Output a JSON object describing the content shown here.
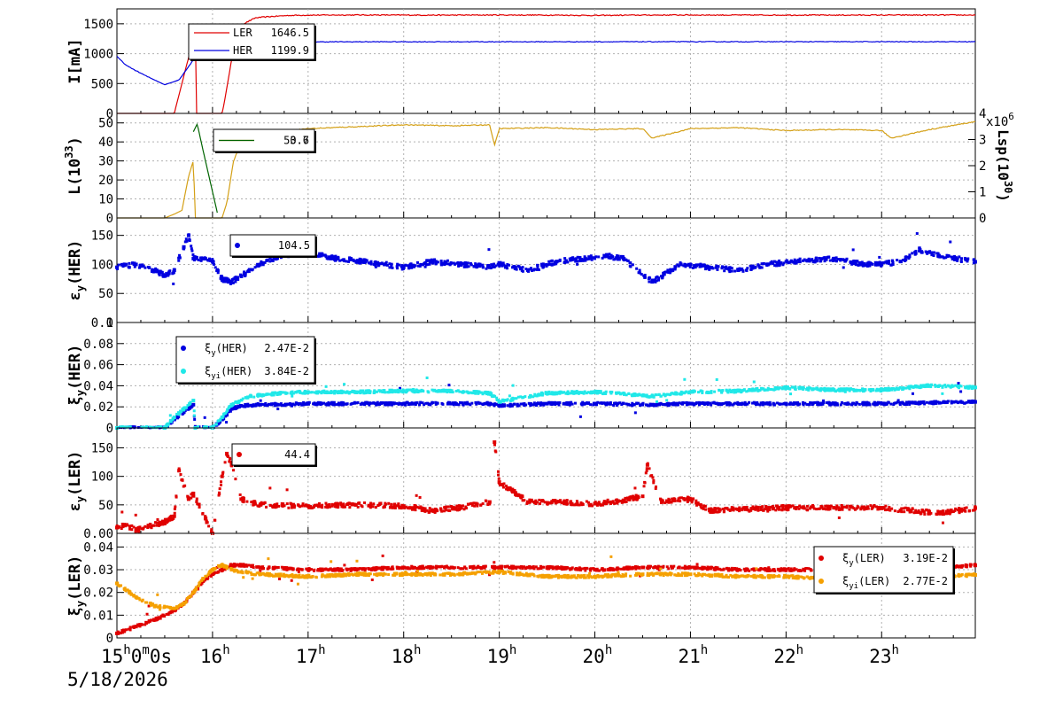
{
  "x_axis": {
    "tick_labels": [
      {
        "t": 15,
        "label": "15",
        "sup": "h",
        "rest": "0",
        "sup2": "m",
        "rest2": "0s"
      },
      {
        "t": 16,
        "label": "16",
        "sup": "h"
      },
      {
        "t": 17,
        "label": "17",
        "sup": "h"
      },
      {
        "t": 18,
        "label": "18",
        "sup": "h"
      },
      {
        "t": 19,
        "label": "19",
        "sup": "h"
      },
      {
        "t": 20,
        "label": "20",
        "sup": "h"
      },
      {
        "t": 21,
        "label": "21",
        "sup": "h"
      },
      {
        "t": 22,
        "label": "22",
        "sup": "h"
      },
      {
        "t": 23,
        "label": "23",
        "sup": "h"
      }
    ],
    "range_hours": [
      15.0,
      23.98
    ],
    "date": "5/18/2026",
    "grid": true
  },
  "colors": {
    "ler": "#e00000",
    "her": "#0000e0",
    "lum": "#d4a017",
    "lsp": "#006400",
    "her_xi_yi": "#20e8e8",
    "ler_xi_yi": "#f5a000"
  },
  "chart_data": [
    {
      "id": "panel-current",
      "type": "line",
      "ylabel": "I[mA]",
      "ylim": [
        0,
        1750
      ],
      "yticks": [
        0,
        500,
        1000,
        1500
      ],
      "legend": [
        {
          "name": "LER",
          "value": "1646.5",
          "color": "#e00000"
        },
        {
          "name": "HER",
          "value": "1199.9",
          "color": "#0000e0"
        }
      ],
      "series": [
        {
          "name": "LER",
          "color": "#e00000",
          "x": [
            15.0,
            15.6,
            15.82,
            15.83,
            16.1,
            16.12,
            16.2,
            16.3,
            16.45,
            16.6,
            16.8,
            17.0,
            17.5,
            18.0,
            18.5,
            19.0,
            19.5,
            20.0,
            20.5,
            21.0,
            21.5,
            22.0,
            22.5,
            23.0,
            23.5,
            23.98
          ],
          "y": [
            0,
            0,
            1380,
            0,
            0,
            150,
            900,
            1480,
            1600,
            1620,
            1640,
            1645,
            1648,
            1646,
            1645,
            1647,
            1646,
            1640,
            1646,
            1647,
            1646,
            1646,
            1645,
            1646,
            1646,
            1646.5
          ]
        },
        {
          "name": "HER",
          "color": "#0000e0",
          "x": [
            15.0,
            15.1,
            15.3,
            15.5,
            15.65,
            15.8,
            15.95,
            16.1,
            16.3,
            17.0,
            18.0,
            19.0,
            20.0,
            21.0,
            22.0,
            23.0,
            23.98
          ],
          "y": [
            950,
            800,
            630,
            480,
            560,
            900,
            1180,
            1190,
            1195,
            1198,
            1199,
            1199,
            1199,
            1200,
            1200,
            1200,
            1199.9
          ]
        }
      ]
    },
    {
      "id": "panel-lum",
      "type": "line",
      "ylabel": "L(10^33)",
      "ylabel2": "Lsp(10^30)",
      "ylim": [
        0,
        55
      ],
      "yticks": [
        0,
        10,
        20,
        30,
        40,
        50
      ],
      "y2lim": [
        0,
        4
      ],
      "y2ticks": [
        0,
        1,
        2,
        3,
        4
      ],
      "y2_multiplier": "x10^6",
      "legend": [
        {
          "name": "",
          "value": "50.7",
          "color": "#d4a017"
        },
        {
          "name": "",
          "value": "3.6",
          "color": "#006400"
        }
      ],
      "series": [
        {
          "name": "L",
          "color": "#d4a017",
          "x": [
            15.0,
            15.5,
            15.6,
            15.68,
            15.75,
            15.8,
            15.82,
            16.0,
            16.1,
            16.15,
            16.22,
            16.3,
            16.4,
            16.6,
            17.0,
            17.5,
            18.0,
            18.5,
            18.9,
            18.95,
            19.0,
            19.5,
            20.0,
            20.5,
            20.6,
            21.0,
            21.5,
            22.0,
            22.5,
            23.0,
            23.1,
            23.5,
            23.98
          ],
          "y": [
            0,
            0,
            2,
            4,
            22,
            30,
            0,
            0,
            0,
            8,
            30,
            40,
            44,
            45,
            47,
            48,
            49,
            48.5,
            49,
            38,
            47,
            47.5,
            46.5,
            47,
            42,
            47,
            47.5,
            46,
            46.5,
            46,
            42,
            46.5,
            50.7
          ]
        },
        {
          "name": "Lsp",
          "color": "#006400",
          "axis": "y2",
          "x": [
            15.8,
            15.84,
            15.9,
            16.0,
            16.05
          ],
          "y": [
            3.3,
            3.6,
            2.6,
            1.0,
            0.2
          ]
        }
      ]
    },
    {
      "id": "panel-ey-her",
      "type": "scatter",
      "ylabel": "εy(HER)",
      "ylim": [
        0,
        180
      ],
      "yticks": [
        0,
        50,
        100,
        150
      ],
      "legend": [
        {
          "name": "",
          "value": "104.5",
          "color": "#0000e0"
        }
      ],
      "series": [
        {
          "name": "εy(HER)",
          "color": "#0000e0",
          "x": [
            15.0,
            15.2,
            15.4,
            15.5,
            15.6,
            15.7,
            15.75,
            15.8,
            15.9,
            16.0,
            16.1,
            16.2,
            16.3,
            16.5,
            16.7,
            17.0,
            17.3,
            17.6,
            17.8,
            18.0,
            18.3,
            18.6,
            18.9,
            19.0,
            19.3,
            19.6,
            19.9,
            20.1,
            20.3,
            20.6,
            20.9,
            21.2,
            21.5,
            21.8,
            22.1,
            22.5,
            22.8,
            23.0,
            23.2,
            23.4,
            23.6,
            23.98
          ],
          "y": [
            95,
            100,
            90,
            80,
            90,
            130,
            150,
            110,
            110,
            105,
            75,
            70,
            80,
            100,
            115,
            120,
            110,
            105,
            100,
            95,
            105,
            100,
            95,
            100,
            90,
            105,
            110,
            115,
            110,
            70,
            100,
            95,
            90,
            100,
            105,
            110,
            100,
            100,
            105,
            125,
            115,
            104.5
          ]
        }
      ]
    },
    {
      "id": "panel-xi-her",
      "type": "scatter",
      "ylabel": "ξy(HER)",
      "ylim": [
        0,
        0.1
      ],
      "yticks": [
        0,
        0.02,
        0.04,
        0.06,
        0.08,
        0.1
      ],
      "ytick_labels": [
        "0",
        "0.02",
        "0.04",
        "0.06",
        "0.08",
        "0.1"
      ],
      "legend": [
        {
          "name": "ξy(HER)",
          "value": "2.47E-2",
          "color": "#0000e0"
        },
        {
          "name": "ξyi(HER)",
          "value": "3.84E-2",
          "color": "#20e8e8"
        }
      ],
      "series": [
        {
          "name": "ξy(HER)",
          "color": "#0000e0",
          "x": [
            15.0,
            15.5,
            15.6,
            15.7,
            15.8,
            15.82,
            16.0,
            16.1,
            16.2,
            16.3,
            16.5,
            17.0,
            18.0,
            18.9,
            19.0,
            19.5,
            20.0,
            20.6,
            21.0,
            22.0,
            23.0,
            23.98
          ],
          "y": [
            0,
            0,
            0.008,
            0.015,
            0.022,
            0,
            0,
            0.008,
            0.018,
            0.021,
            0.022,
            0.023,
            0.023,
            0.023,
            0.021,
            0.023,
            0.023,
            0.022,
            0.023,
            0.023,
            0.023,
            0.0247
          ]
        },
        {
          "name": "ξyi(HER)",
          "color": "#20e8e8",
          "x": [
            15.0,
            15.5,
            15.6,
            15.7,
            15.8,
            15.82,
            16.0,
            16.1,
            16.2,
            16.4,
            16.7,
            17.0,
            17.5,
            18.0,
            18.5,
            18.9,
            19.0,
            19.5,
            20.0,
            20.6,
            21.0,
            21.5,
            22.0,
            22.5,
            23.0,
            23.5,
            23.98
          ],
          "y": [
            0,
            0,
            0.01,
            0.018,
            0.026,
            0,
            0,
            0.01,
            0.022,
            0.03,
            0.033,
            0.034,
            0.034,
            0.035,
            0.035,
            0.033,
            0.025,
            0.033,
            0.034,
            0.03,
            0.034,
            0.035,
            0.038,
            0.036,
            0.036,
            0.04,
            0.0384
          ]
        }
      ]
    },
    {
      "id": "panel-ey-ler",
      "type": "scatter",
      "ylabel": "εy(LER)",
      "ylim": [
        0,
        185
      ],
      "yticks": [
        0,
        50,
        100,
        150
      ],
      "ytick_labels": [
        "0.00",
        "50",
        "100",
        "150"
      ],
      "legend": [
        {
          "name": "",
          "value": "44.4",
          "color": "#e00000"
        }
      ],
      "series": [
        {
          "name": "εy(LER)",
          "color": "#e00000",
          "x": [
            15.0,
            15.1,
            15.2,
            15.5,
            15.6,
            15.65,
            15.75,
            15.8,
            16.0,
            16.1,
            16.15,
            16.2,
            16.3,
            16.5,
            17.0,
            17.5,
            18.0,
            18.3,
            18.6,
            18.9,
            18.95,
            19.0,
            19.3,
            19.6,
            20.0,
            20.3,
            20.5,
            20.55,
            20.7,
            21.0,
            21.2,
            21.5,
            22.0,
            22.5,
            23.0,
            23.3,
            23.6,
            23.98
          ],
          "y": [
            10,
            15,
            5,
            20,
            30,
            110,
            60,
            70,
            0,
            100,
            140,
            120,
            60,
            50,
            48,
            50,
            48,
            40,
            45,
            55,
            160,
            90,
            55,
            55,
            52,
            58,
            65,
            120,
            55,
            60,
            40,
            42,
            45,
            45,
            45,
            40,
            35,
            44.4
          ]
        }
      ]
    },
    {
      "id": "panel-xi-ler",
      "type": "scatter",
      "ylabel": "ξy(LER)",
      "ylim": [
        0,
        0.046
      ],
      "yticks": [
        0,
        0.01,
        0.02,
        0.03,
        0.04
      ],
      "ytick_labels": [
        "0",
        "0.01",
        "0.02",
        "0.03",
        "0.04"
      ],
      "legend": [
        {
          "name": "ξy(LER)",
          "value": "3.19E-2",
          "color": "#e00000"
        },
        {
          "name": "ξyi(LER)",
          "value": "2.77E-2",
          "color": "#f5a000"
        }
      ],
      "series": [
        {
          "name": "ξy(LER)",
          "color": "#e00000",
          "x": [
            15.0,
            15.2,
            15.4,
            15.6,
            15.7,
            15.8,
            15.9,
            16.0,
            16.1,
            16.2,
            16.3,
            16.5,
            17.0,
            17.5,
            18.0,
            18.5,
            19.0,
            19.5,
            20.0,
            20.5,
            21.0,
            21.5,
            22.0,
            22.5,
            23.0,
            23.5,
            23.98
          ],
          "y": [
            0.002,
            0.005,
            0.008,
            0.012,
            0.015,
            0.02,
            0.025,
            0.028,
            0.03,
            0.032,
            0.032,
            0.031,
            0.03,
            0.03,
            0.031,
            0.031,
            0.031,
            0.031,
            0.03,
            0.031,
            0.031,
            0.03,
            0.03,
            0.03,
            0.031,
            0.031,
            0.0319
          ]
        },
        {
          "name": "ξyi(LER)",
          "color": "#f5a000",
          "x": [
            15.0,
            15.2,
            15.4,
            15.6,
            15.7,
            15.8,
            15.9,
            16.0,
            16.1,
            16.2,
            16.3,
            16.5,
            17.0,
            17.5,
            18.0,
            18.5,
            19.0,
            19.5,
            20.0,
            20.5,
            21.0,
            21.5,
            22.0,
            22.5,
            23.0,
            23.3,
            23.5,
            23.98
          ],
          "y": [
            0.024,
            0.018,
            0.014,
            0.013,
            0.015,
            0.02,
            0.026,
            0.03,
            0.032,
            0.03,
            0.029,
            0.028,
            0.027,
            0.028,
            0.028,
            0.028,
            0.029,
            0.027,
            0.027,
            0.028,
            0.028,
            0.027,
            0.027,
            0.026,
            0.027,
            0.024,
            0.027,
            0.0277
          ]
        }
      ]
    }
  ]
}
